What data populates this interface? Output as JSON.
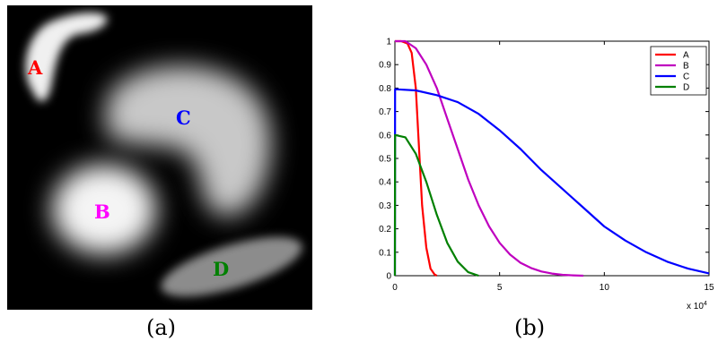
{
  "panel_a": {
    "caption": "(a)",
    "labels": [
      {
        "text": "A",
        "color": "#ff0000"
      },
      {
        "text": "B",
        "color": "#ff00ff"
      },
      {
        "text": "C",
        "color": "#0000ff"
      },
      {
        "text": "D",
        "color": "#008000"
      }
    ]
  },
  "panel_b": {
    "caption": "(b)"
  },
  "chart_data": {
    "type": "line",
    "xlim": [
      0,
      15
    ],
    "ylim": [
      0,
      1
    ],
    "x_exponent_label": "x 10^4",
    "x_exponent_base": "x 10",
    "x_exponent_power": "4",
    "xticks": [
      "0",
      "5",
      "10",
      "15"
    ],
    "yticks": [
      "0",
      "0.1",
      "0.2",
      "0.3",
      "0.4",
      "0.5",
      "0.6",
      "0.7",
      "0.8",
      "0.9",
      "1"
    ],
    "grid": false,
    "legend_position": "top-right",
    "series": [
      {
        "name": "A",
        "color": "#ff0000",
        "x": [
          0,
          0.3,
          0.6,
          0.8,
          1.0,
          1.15,
          1.3,
          1.5,
          1.7,
          1.9,
          2.0
        ],
        "y": [
          1.0,
          1.0,
          0.99,
          0.95,
          0.8,
          0.55,
          0.3,
          0.12,
          0.03,
          0.005,
          0.0
        ]
      },
      {
        "name": "B",
        "color": "#bf00bf",
        "x": [
          0,
          0.5,
          1.0,
          1.5,
          2.0,
          2.5,
          3.0,
          3.5,
          4.0,
          4.5,
          5.0,
          5.5,
          6.0,
          6.5,
          7.0,
          7.5,
          8.0,
          8.5,
          9.0
        ],
        "y": [
          1.0,
          1.0,
          0.97,
          0.9,
          0.8,
          0.67,
          0.54,
          0.41,
          0.3,
          0.21,
          0.14,
          0.09,
          0.055,
          0.033,
          0.018,
          0.009,
          0.004,
          0.0015,
          0.0
        ]
      },
      {
        "name": "C",
        "color": "#0000ff",
        "x": [
          0,
          0.01,
          1,
          2,
          3,
          4,
          5,
          6,
          7,
          8,
          9,
          10,
          11,
          12,
          13,
          14,
          15
        ],
        "y": [
          0,
          0.795,
          0.79,
          0.77,
          0.74,
          0.69,
          0.62,
          0.54,
          0.45,
          0.37,
          0.29,
          0.21,
          0.15,
          0.1,
          0.06,
          0.03,
          0.01
        ]
      },
      {
        "name": "D",
        "color": "#008000",
        "x": [
          0,
          0.01,
          0.5,
          1.0,
          1.5,
          2.0,
          2.5,
          3.0,
          3.5,
          4.0
        ],
        "y": [
          0,
          0.6,
          0.59,
          0.52,
          0.4,
          0.26,
          0.14,
          0.06,
          0.015,
          0.0
        ]
      }
    ]
  }
}
